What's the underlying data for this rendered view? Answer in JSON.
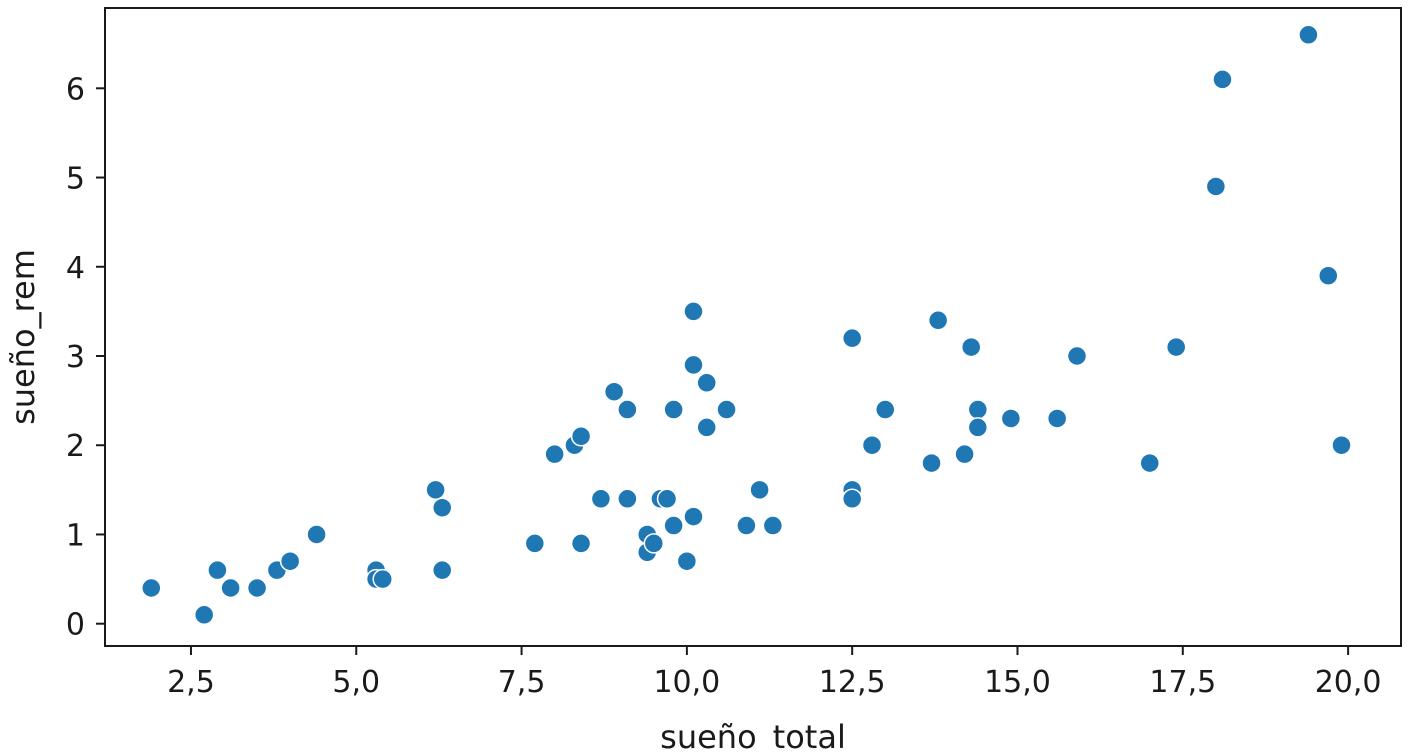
{
  "chart_data": {
    "type": "scatter",
    "xlabel": "sueño_total",
    "ylabel": "sueño_rem",
    "xlim": [
      1.2,
      20.8
    ],
    "ylim": [
      -0.25,
      6.9
    ],
    "xticks": [
      2.5,
      5.0,
      7.5,
      10.0,
      12.5,
      15.0,
      17.5,
      20.0
    ],
    "xtick_labels": [
      "2,5",
      "5,0",
      "7,5",
      "10,0",
      "12,5",
      "15,0",
      "17,5",
      "20,0"
    ],
    "yticks": [
      0,
      1,
      2,
      3,
      4,
      5,
      6
    ],
    "ytick_labels": [
      "0",
      "1",
      "2",
      "3",
      "4",
      "5",
      "6"
    ],
    "grid": false,
    "marker_color": "#1f77b4",
    "points": [
      {
        "x": 1.9,
        "y": 0.4
      },
      {
        "x": 2.7,
        "y": 0.1
      },
      {
        "x": 2.9,
        "y": 0.6
      },
      {
        "x": 3.1,
        "y": 0.4
      },
      {
        "x": 3.5,
        "y": 0.4
      },
      {
        "x": 3.8,
        "y": 0.6
      },
      {
        "x": 4.0,
        "y": 0.7
      },
      {
        "x": 4.4,
        "y": 1.0
      },
      {
        "x": 5.3,
        "y": 0.6
      },
      {
        "x": 5.3,
        "y": 0.5
      },
      {
        "x": 5.4,
        "y": 0.5
      },
      {
        "x": 6.2,
        "y": 1.5
      },
      {
        "x": 6.3,
        "y": 1.3
      },
      {
        "x": 6.3,
        "y": 0.6
      },
      {
        "x": 7.7,
        "y": 0.9
      },
      {
        "x": 8.0,
        "y": 1.9
      },
      {
        "x": 8.3,
        "y": 2.0
      },
      {
        "x": 8.4,
        "y": 2.1
      },
      {
        "x": 8.4,
        "y": 0.9
      },
      {
        "x": 8.7,
        "y": 1.4
      },
      {
        "x": 8.9,
        "y": 2.6
      },
      {
        "x": 9.1,
        "y": 2.4
      },
      {
        "x": 9.1,
        "y": 1.4
      },
      {
        "x": 9.4,
        "y": 1.0
      },
      {
        "x": 9.4,
        "y": 0.8
      },
      {
        "x": 9.5,
        "y": 0.9
      },
      {
        "x": 9.6,
        "y": 1.4
      },
      {
        "x": 9.7,
        "y": 1.4
      },
      {
        "x": 9.8,
        "y": 2.4
      },
      {
        "x": 9.8,
        "y": 1.1
      },
      {
        "x": 10.0,
        "y": 0.7
      },
      {
        "x": 10.1,
        "y": 3.5
      },
      {
        "x": 10.1,
        "y": 2.9
      },
      {
        "x": 10.1,
        "y": 1.2
      },
      {
        "x": 10.3,
        "y": 2.7
      },
      {
        "x": 10.3,
        "y": 2.2
      },
      {
        "x": 10.6,
        "y": 2.4
      },
      {
        "x": 10.9,
        "y": 1.1
      },
      {
        "x": 11.1,
        "y": 1.5
      },
      {
        "x": 11.3,
        "y": 1.1
      },
      {
        "x": 12.5,
        "y": 3.2
      },
      {
        "x": 12.5,
        "y": 1.5
      },
      {
        "x": 12.5,
        "y": 1.4
      },
      {
        "x": 12.8,
        "y": 2.0
      },
      {
        "x": 13.0,
        "y": 2.4
      },
      {
        "x": 13.7,
        "y": 1.8
      },
      {
        "x": 13.8,
        "y": 3.4
      },
      {
        "x": 14.2,
        "y": 1.9
      },
      {
        "x": 14.3,
        "y": 3.1
      },
      {
        "x": 14.4,
        "y": 2.4
      },
      {
        "x": 14.4,
        "y": 2.2
      },
      {
        "x": 14.9,
        "y": 2.3
      },
      {
        "x": 15.6,
        "y": 2.3
      },
      {
        "x": 15.9,
        "y": 3.0
      },
      {
        "x": 17.0,
        "y": 1.8
      },
      {
        "x": 17.4,
        "y": 3.1
      },
      {
        "x": 18.0,
        "y": 4.9
      },
      {
        "x": 18.1,
        "y": 6.1
      },
      {
        "x": 19.4,
        "y": 6.6
      },
      {
        "x": 19.7,
        "y": 3.9
      },
      {
        "x": 19.9,
        "y": 2.0
      }
    ]
  }
}
